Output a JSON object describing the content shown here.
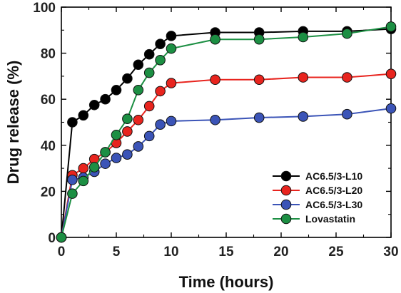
{
  "chart_data": {
    "type": "line",
    "xlabel": "Time (hours)",
    "ylabel": "Drug release (%)",
    "xlim": [
      0,
      30
    ],
    "ylim": [
      0,
      100
    ],
    "xticks": [
      0,
      5,
      10,
      15,
      20,
      25,
      30
    ],
    "yticks": [
      0,
      20,
      40,
      60,
      80,
      100
    ],
    "grid": false,
    "legend_position": "bottom-right",
    "series": [
      {
        "name": "AC6.5/3-L10",
        "color": "#000000",
        "x": [
          0,
          1,
          2,
          3,
          4,
          5,
          6,
          7,
          8,
          9,
          10,
          14,
          18,
          22,
          26,
          30
        ],
        "y": [
          0,
          50,
          53,
          57.5,
          60,
          64,
          69,
          75,
          79.5,
          84,
          87.5,
          89,
          89,
          89.5,
          89.5,
          90.5
        ]
      },
      {
        "name": "AC6.5/3-L20",
        "color": "#e8241e",
        "x": [
          0,
          1,
          2,
          3,
          4,
          5,
          6,
          7,
          8,
          9,
          10,
          14,
          18,
          22,
          26,
          30
        ],
        "y": [
          0,
          27,
          30,
          34,
          37,
          41,
          46,
          51,
          57,
          63.5,
          67,
          68.5,
          68.5,
          69.5,
          69.5,
          71
        ]
      },
      {
        "name": "AC6.5/3-L30",
        "color": "#3b54b7",
        "x": [
          0,
          1,
          2,
          3,
          4,
          5,
          6,
          7,
          8,
          9,
          10,
          14,
          18,
          22,
          26,
          30
        ],
        "y": [
          0,
          25,
          26,
          28.5,
          32,
          34.5,
          36,
          39.5,
          44,
          49,
          50.5,
          51,
          52,
          52.5,
          53.5,
          56
        ]
      },
      {
        "name": "Lovastatin",
        "color": "#1c8f43",
        "x": [
          0,
          1,
          2,
          3,
          4,
          5,
          6,
          7,
          8,
          9,
          10,
          14,
          18,
          22,
          26,
          30
        ],
        "y": [
          0,
          19,
          24.5,
          30.5,
          37,
          44.5,
          51.5,
          64,
          71.5,
          77,
          82,
          86,
          86,
          87,
          88.5,
          91.5
        ]
      }
    ]
  }
}
